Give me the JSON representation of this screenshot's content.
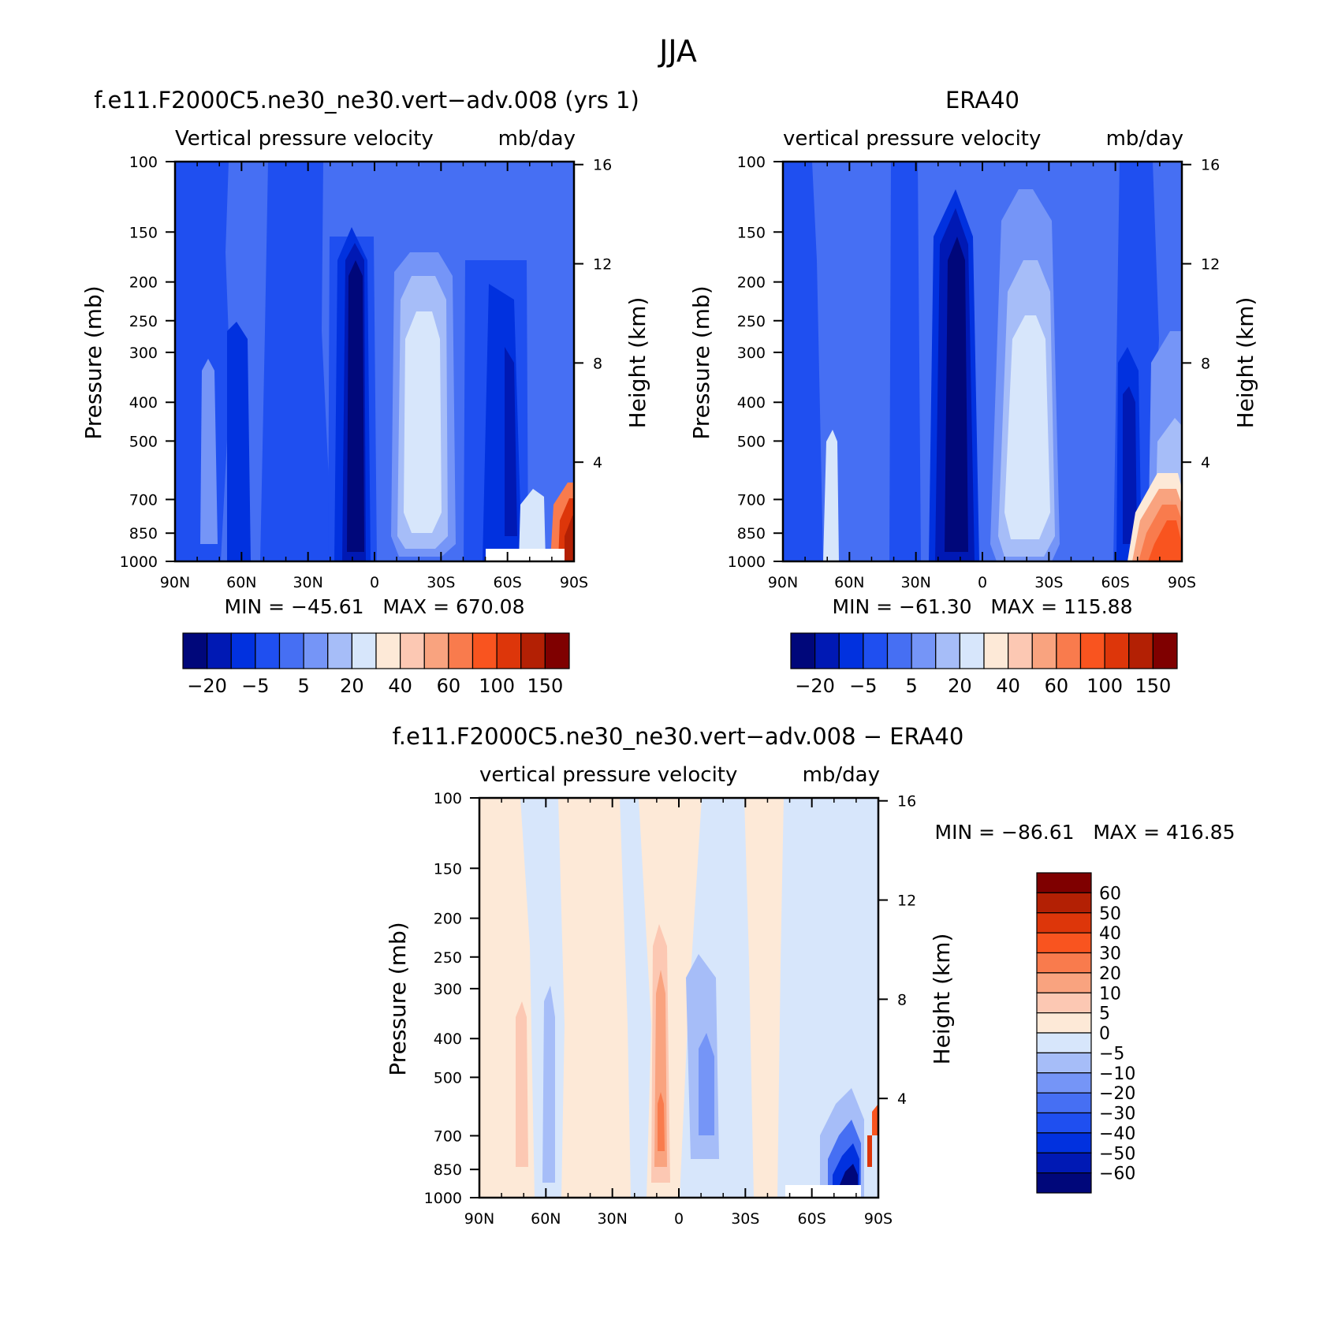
{
  "page_title": "JJA",
  "chart_data": [
    {
      "type": "heatmap",
      "title": "f.e11.F2000C5.ne30_ne30.vert−adv.008 (yrs 1)",
      "subtitle_left": "Vertical pressure velocity",
      "subtitle_right": "mb/day",
      "ylabel": "Pressure (mb)",
      "ylabel_right": "Height (km)",
      "x_ticks": [
        "90N",
        "60N",
        "30N",
        "0",
        "30S",
        "60S",
        "90S"
      ],
      "y_ticks": [
        "100",
        "150",
        "200",
        "250",
        "300",
        "400",
        "500",
        "700",
        "850",
        "1000"
      ],
      "y_right_ticks": [
        "16",
        "12",
        "8",
        "4"
      ],
      "stats": "MIN = −45.61   MAX = 670.08",
      "colorbar_labels": [
        "−20",
        "−5",
        "5",
        "20",
        "40",
        "60",
        "100",
        "150"
      ],
      "colorbar_colors": [
        "#00077a",
        "#0019b4",
        "#0131df",
        "#1f4ff0",
        "#466ff3",
        "#7595f7",
        "#a6bdf8",
        "#d7e6fb",
        "#fde9d7",
        "#fcc8b3",
        "#f9a37f",
        "#f97b4d",
        "#f9541f",
        "#dd360a",
        "#b32004",
        "#7f0000"
      ],
      "colorbar_orientation": "horizontal"
    },
    {
      "type": "heatmap",
      "title": "ERA40",
      "subtitle_left": "vertical pressure velocity",
      "subtitle_right": "mb/day",
      "ylabel": "Pressure (mb)",
      "ylabel_right": "Height (km)",
      "x_ticks": [
        "90N",
        "60N",
        "30N",
        "0",
        "30S",
        "60S",
        "90S"
      ],
      "y_ticks": [
        "100",
        "150",
        "200",
        "250",
        "300",
        "400",
        "500",
        "700",
        "850",
        "1000"
      ],
      "y_right_ticks": [
        "16",
        "12",
        "8",
        "4"
      ],
      "stats": "MIN = −61.30   MAX = 115.88",
      "colorbar_labels": [
        "−20",
        "−5",
        "5",
        "20",
        "40",
        "60",
        "100",
        "150"
      ],
      "colorbar_colors": [
        "#00077a",
        "#0019b4",
        "#0131df",
        "#1f4ff0",
        "#466ff3",
        "#7595f7",
        "#a6bdf8",
        "#d7e6fb",
        "#fde9d7",
        "#fcc8b3",
        "#f9a37f",
        "#f97b4d",
        "#f9541f",
        "#dd360a",
        "#b32004",
        "#7f0000"
      ],
      "colorbar_orientation": "horizontal"
    },
    {
      "type": "heatmap",
      "title": "f.e11.F2000C5.ne30_ne30.vert−adv.008 − ERA40",
      "subtitle_left": "vertical pressure velocity",
      "subtitle_right": "mb/day",
      "ylabel": "Pressure (mb)",
      "ylabel_right": "Height (km)",
      "x_ticks": [
        "90N",
        "60N",
        "30N",
        "0",
        "30S",
        "60S",
        "90S"
      ],
      "y_ticks": [
        "100",
        "150",
        "200",
        "250",
        "300",
        "400",
        "500",
        "700",
        "850",
        "1000"
      ],
      "y_right_ticks": [
        "16",
        "12",
        "8",
        "4"
      ],
      "stats": "MIN = −86.61   MAX = 416.85",
      "colorbar_labels": [
        "60",
        "50",
        "40",
        "30",
        "20",
        "10",
        "5",
        "0",
        "−5",
        "−10",
        "−20",
        "−30",
        "−40",
        "−50",
        "−60"
      ],
      "colorbar_colors": [
        "#7f0000",
        "#b32004",
        "#dd360a",
        "#f9541f",
        "#f97b4d",
        "#f9a37f",
        "#fcc8b3",
        "#fde9d7",
        "#d7e6fb",
        "#a6bdf8",
        "#7595f7",
        "#466ff3",
        "#1f4ff0",
        "#0131df",
        "#0019b4",
        "#00077a"
      ],
      "colorbar_orientation": "vertical"
    }
  ]
}
